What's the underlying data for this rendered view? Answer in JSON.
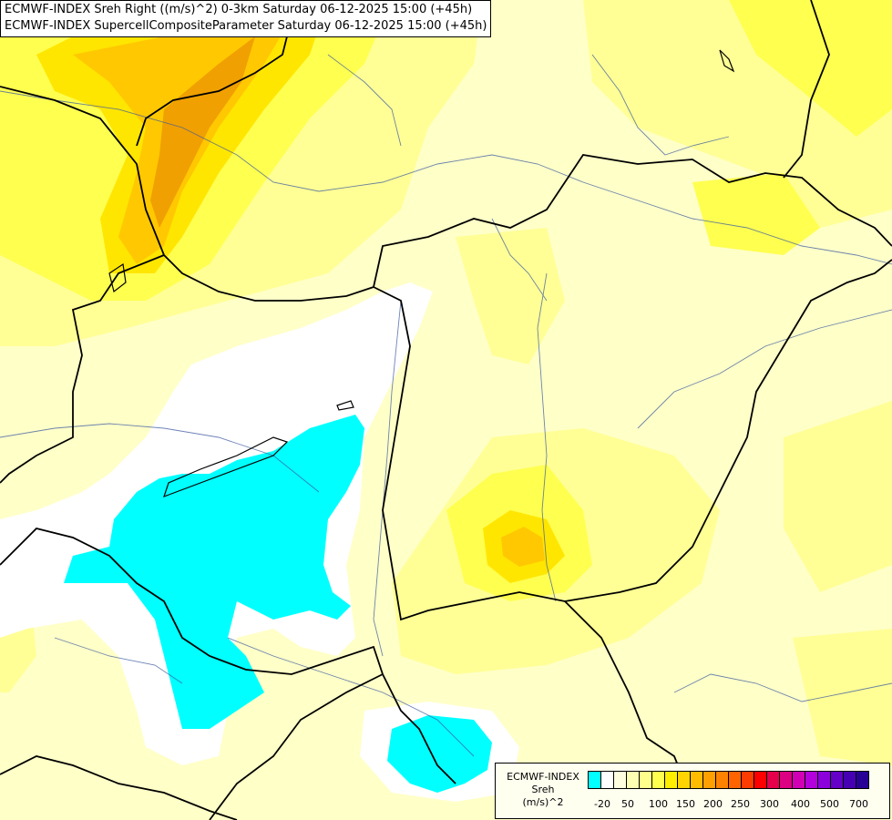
{
  "titles": {
    "line1": "ECMWF-INDEX Sreh Right ((m/s)^2) 0-3km Saturday 06-12-2025 15:00 (+45h)",
    "line2": "ECMWF-INDEX SupercellCompositeParameter Saturday 06-12-2025 15:00 (+45h)"
  },
  "legend": {
    "line1": "ECMWF-INDEX",
    "line2": "Sreh",
    "line3": "(m/s)^2",
    "colors": [
      "#00ffff",
      "#ffffff",
      "#ffffe0",
      "#ffffb4",
      "#ffff8c",
      "#ffff50",
      "#ffee00",
      "#ffd400",
      "#ffbb00",
      "#ffa000",
      "#ff8200",
      "#ff6400",
      "#ff3c00",
      "#ff0000",
      "#e6004c",
      "#dc0082",
      "#d200b4",
      "#b400dc",
      "#8c00dc",
      "#6400c8",
      "#4600b4",
      "#280096"
    ],
    "ticks": [
      "-20",
      "50",
      "100",
      "150",
      "200",
      "250",
      "300",
      "400",
      "500",
      "700"
    ]
  },
  "map": {
    "field_colors": {
      "cyan": "#00ffff",
      "white": "#ffffff",
      "pale": "#ffffc8",
      "light": "#ffff96",
      "yellow": "#ffff50",
      "gold": "#ffe600",
      "amber": "#ffc800",
      "orange": "#f0a000"
    }
  }
}
